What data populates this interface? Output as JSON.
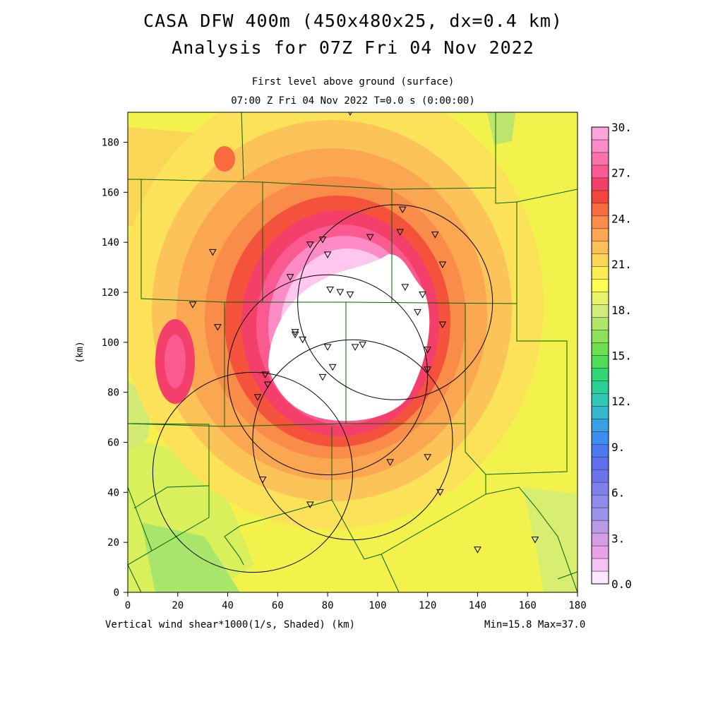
{
  "header": {
    "title_line1": "CASA DFW 400m (450x480x25, dx=0.4 km)",
    "title_line2": "Analysis for 07Z Fri 04 Nov 2022",
    "level": "First level above ground (surface)",
    "time": "07:00 Z Fri 04 Nov 2022   T=0.0 s (0:00:00)"
  },
  "footer": {
    "variable": "Vertical wind shear*1000(1/s, Shaded)  (km)",
    "range": "Min=15.8 Max=37.0"
  },
  "map": {
    "x_axis": {
      "label": "",
      "min": 0,
      "max": 180,
      "ticks": [
        "0",
        "20",
        "40",
        "60",
        "80",
        "100",
        "120",
        "140",
        "160",
        "180"
      ]
    },
    "y_axis": {
      "label": "(km)",
      "min": 0,
      "max": 192,
      "ticks": [
        "0",
        "20",
        "40",
        "60",
        "80",
        "100",
        "120",
        "140",
        "160",
        "180"
      ]
    },
    "radar_rings": [
      {
        "cx": 107,
        "cy": 116,
        "r": 39
      },
      {
        "cx": 80,
        "cy": 87,
        "r": 40
      },
      {
        "cx": 90,
        "cy": 61,
        "r": 40
      },
      {
        "cx": 50,
        "cy": 48,
        "r": 40
      }
    ],
    "stations": [
      [
        89,
        192
      ],
      [
        110,
        153
      ],
      [
        123,
        143
      ],
      [
        109,
        144
      ],
      [
        97,
        142
      ],
      [
        78,
        141
      ],
      [
        73,
        139
      ],
      [
        80,
        135
      ],
      [
        34,
        136
      ],
      [
        126,
        131
      ],
      [
        65,
        126
      ],
      [
        111,
        122
      ],
      [
        81,
        121
      ],
      [
        85,
        120
      ],
      [
        89,
        119
      ],
      [
        118,
        119
      ],
      [
        26,
        115
      ],
      [
        116,
        112
      ],
      [
        126,
        107
      ],
      [
        36,
        106
      ],
      [
        67,
        104
      ],
      [
        67,
        103
      ],
      [
        70,
        101
      ],
      [
        80,
        98
      ],
      [
        91,
        98
      ],
      [
        94,
        99
      ],
      [
        120,
        97
      ],
      [
        120,
        89
      ],
      [
        82,
        90
      ],
      [
        78,
        86
      ],
      [
        55,
        87
      ],
      [
        56,
        83
      ],
      [
        52,
        78
      ],
      [
        120,
        54
      ],
      [
        105,
        52
      ],
      [
        54,
        45
      ],
      [
        125,
        40
      ],
      [
        73,
        35
      ],
      [
        140,
        17
      ],
      [
        163,
        21
      ]
    ]
  },
  "colorbar": {
    "labels": [
      "0.0",
      "3.",
      "6.",
      "9.",
      "12.",
      "15.",
      "18.",
      "21.",
      "24.",
      "27.",
      "30."
    ],
    "colors": [
      "#ffe6ff",
      "#f5c3f0",
      "#e9a0e6",
      "#d79ce6",
      "#b89ae8",
      "#9b93ea",
      "#8d8ce9",
      "#7f80e9",
      "#6a74e8",
      "#5d6fee",
      "#4a7cf0",
      "#3a8ff0",
      "#37a1e4",
      "#38b7d0",
      "#30c7b5",
      "#28d096",
      "#2fd775",
      "#4fdd58",
      "#6ee04e",
      "#8ce35a",
      "#aee76c",
      "#d1ec7a",
      "#e8f36b",
      "#fbff4d",
      "#fcec55",
      "#fdd658",
      "#fcc058",
      "#fba752",
      "#fa8c4a",
      "#f76b3f",
      "#f44538",
      "#f53f6b",
      "#fa5a8f",
      "#fc72ab",
      "#fd8bc6",
      "#ffa3dc"
    ]
  },
  "colors": {
    "boundary_line": "#006400",
    "ring_line": "#000000"
  }
}
